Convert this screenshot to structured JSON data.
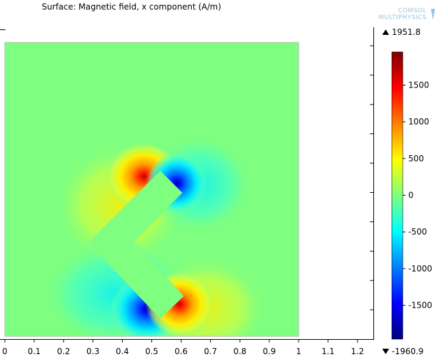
{
  "title": "Surface: Magnetic field, x component (A/m)",
  "logo": {
    "line1": "COMSOL",
    "line2": "MULTIPHYSICS"
  },
  "colorbar": {
    "max_label": "1951.8",
    "min_label": "-1960.9",
    "ticks": [
      "1500",
      "1000",
      "500",
      "0",
      "-500",
      "-1000",
      "-1500"
    ]
  },
  "chart_data": {
    "type": "heatmap",
    "title": "Surface: Magnetic field, x component (A/m)",
    "unit": "A/m",
    "quantity": "Magnetic field, x component",
    "x_ticks": [
      "0",
      "0.1",
      "0.2",
      "0.3",
      "0.4",
      "0.5",
      "0.6",
      "0.7",
      "0.8",
      "0.9",
      "1",
      "1.1",
      "1.2"
    ],
    "xlim": [
      0,
      1.25
    ],
    "domain": {
      "x": [
        0,
        1
      ],
      "y": [
        0,
        1
      ]
    },
    "value_range": [
      -1960.9,
      1951.8
    ],
    "colorbar_ticks": [
      1500,
      1000,
      500,
      0,
      -500,
      -1000,
      -1500
    ],
    "colormap": "rainbow",
    "hot_spots": [
      {
        "x": 0.52,
        "y": 0.56,
        "sign": "positive"
      },
      {
        "x": 0.605,
        "y": 0.48,
        "sign": "negative"
      },
      {
        "x": 0.53,
        "y": 0.07,
        "sign": "negative"
      },
      {
        "x": 0.605,
        "y": 0.15,
        "sign": "positive"
      }
    ]
  }
}
